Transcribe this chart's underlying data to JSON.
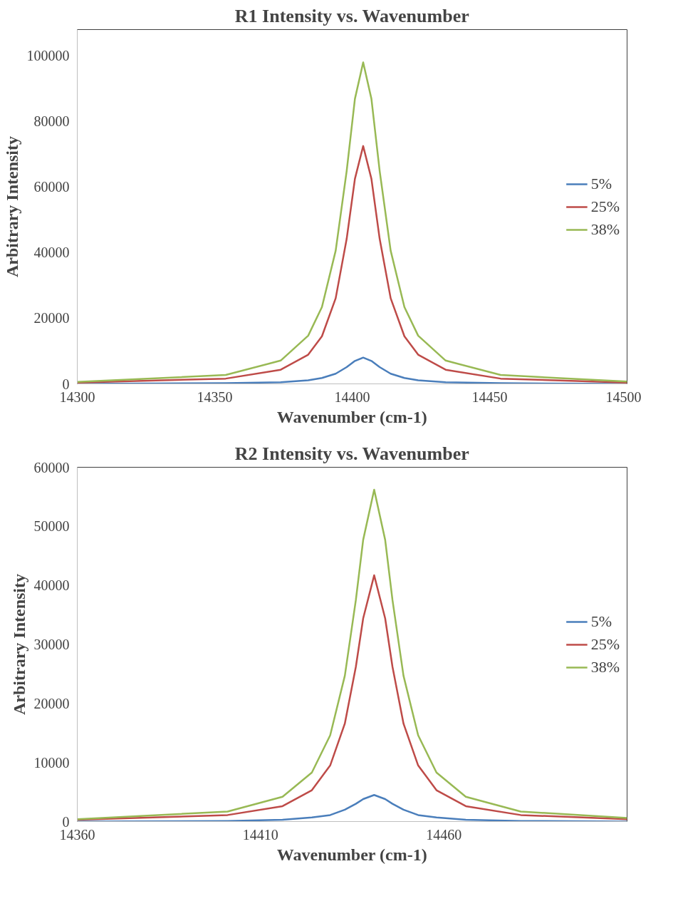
{
  "chart_data": [
    {
      "type": "line",
      "title": "R1 Intensity vs. Wavenumber",
      "xlabel": "Wavenumber (cm-1)",
      "ylabel": "Arbitrary Intensity",
      "x": [
        14300,
        14354,
        14374,
        14384,
        14389,
        14394,
        14398,
        14401,
        14404,
        14407,
        14410,
        14414,
        14419,
        14424,
        14434,
        14454,
        14500
      ],
      "series": [
        {
          "name": "5%",
          "color": "#4a7ebb",
          "values": [
            0,
            200,
            500,
            1100,
            1800,
            3100,
            5100,
            7000,
            8000,
            7000,
            5100,
            3100,
            1800,
            1100,
            500,
            200,
            0
          ]
        },
        {
          "name": "25%",
          "color": "#be4b48",
          "values": [
            400,
            1600,
            4300,
            8900,
            14500,
            26100,
            44200,
            62500,
            72500,
            62500,
            44200,
            26100,
            14500,
            8900,
            4300,
            1600,
            400
          ]
        },
        {
          "name": "38%",
          "color": "#98b954",
          "values": [
            600,
            2700,
            7100,
            14700,
            23400,
            40600,
            64900,
            86900,
            98000,
            86900,
            64900,
            40600,
            23400,
            14700,
            7100,
            2700,
            700
          ]
        }
      ],
      "xlim": [
        14300,
        14500
      ],
      "xticks": [
        14300,
        14350,
        14400,
        14450,
        14500
      ],
      "ylim": [
        0,
        108000
      ],
      "yticks": [
        0,
        20000,
        40000,
        60000,
        80000,
        100000
      ],
      "grid": false,
      "legend": "right",
      "marker": "none",
      "line_style": "solid"
    },
    {
      "type": "line",
      "title": "R2 Intensity vs. Wavenumber",
      "xlabel": "Wavenumber (cm-1)",
      "ylabel": "Arbitrary Intensity",
      "x": [
        14360,
        14401,
        14416,
        14424,
        14429,
        14433,
        14436,
        14438,
        14441,
        14444,
        14446,
        14449,
        14453,
        14458,
        14466,
        14481,
        14510
      ],
      "series": [
        {
          "name": "5%",
          "color": "#4a7ebb",
          "values": [
            0,
            100,
            300,
            700,
            1100,
            2000,
            3000,
            3800,
            4500,
            3800,
            3000,
            2000,
            1100,
            700,
            300,
            100,
            0
          ]
        },
        {
          "name": "25%",
          "color": "#be4b48",
          "values": [
            300,
            1100,
            2600,
            5300,
            9500,
            16600,
            26200,
            34400,
            41700,
            34400,
            26200,
            16600,
            9500,
            5300,
            2600,
            1100,
            400
          ]
        },
        {
          "name": "38%",
          "color": "#98b954",
          "values": [
            400,
            1700,
            4200,
            8300,
            14600,
            24700,
            37500,
            47700,
            56200,
            47700,
            37500,
            24700,
            14600,
            8300,
            4200,
            1700,
            600
          ]
        }
      ],
      "xlim": [
        14360,
        14510
      ],
      "xticks": [
        14360,
        14410,
        14460
      ],
      "ylim": [
        0,
        60000
      ],
      "yticks": [
        0,
        10000,
        20000,
        30000,
        40000,
        50000,
        60000
      ],
      "grid": false,
      "legend": "right",
      "marker": "none",
      "line_style": "solid"
    }
  ]
}
